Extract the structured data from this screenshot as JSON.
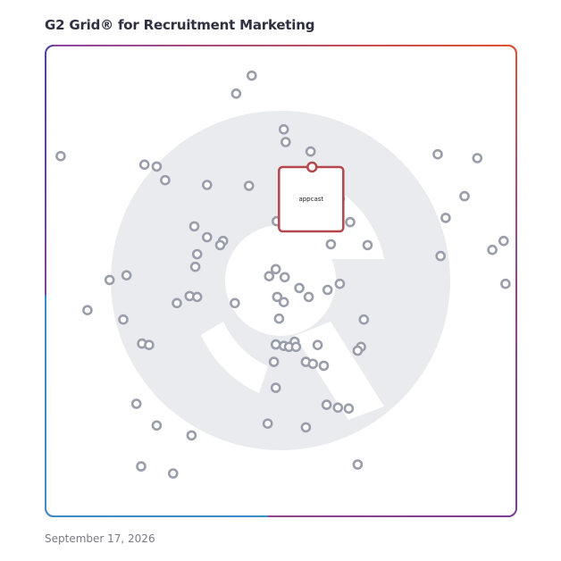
{
  "header": {
    "title": "G2 Grid® for Recruitment Marketing"
  },
  "footer": {
    "date": "September 17, 2026"
  },
  "highlight": {
    "label": "appcast",
    "color": "#b5474c"
  },
  "colors": {
    "point_stroke": "#9a9eab",
    "watermark": "#e9ebef",
    "frame_top_left": "#4a3fa6",
    "frame_top_right": "#e3502f",
    "frame_bottom_left": "#2a98d2",
    "frame_bottom_right": "#7a3d98"
  },
  "chart_data": {
    "type": "scatter",
    "title": "G2 Grid® for Recruitment Marketing",
    "xlabel": "",
    "ylabel": "",
    "xlim": [
      0,
      100
    ],
    "ylim": [
      0,
      100
    ],
    "grid": false,
    "quadrant_lines": {
      "x": 50,
      "y": 50
    },
    "highlight_point": {
      "label": "appcast",
      "x": 56.6,
      "y": 74.2
    },
    "points": [
      [
        43.8,
        93.6
      ],
      [
        40.5,
        89.8
      ],
      [
        50.6,
        82.2
      ],
      [
        51.0,
        79.5
      ],
      [
        56.3,
        77.5
      ],
      [
        3.2,
        76.5
      ],
      [
        21.0,
        74.7
      ],
      [
        23.6,
        74.3
      ],
      [
        25.4,
        71.4
      ],
      [
        34.3,
        70.4
      ],
      [
        43.2,
        70.2
      ],
      [
        62.5,
        67.4
      ],
      [
        83.3,
        76.9
      ],
      [
        91.7,
        76.1
      ],
      [
        89.0,
        68.0
      ],
      [
        85.0,
        63.4
      ],
      [
        49.1,
        62.7
      ],
      [
        64.7,
        62.5
      ],
      [
        31.6,
        61.6
      ],
      [
        34.3,
        59.3
      ],
      [
        37.7,
        58.5
      ],
      [
        37.1,
        57.6
      ],
      [
        32.2,
        55.7
      ],
      [
        60.6,
        57.8
      ],
      [
        68.4,
        57.6
      ],
      [
        94.9,
        56.6
      ],
      [
        97.3,
        58.5
      ],
      [
        83.9,
        55.3
      ],
      [
        31.8,
        53.0
      ],
      [
        48.9,
        52.5
      ],
      [
        47.5,
        51.0
      ],
      [
        50.8,
        50.8
      ],
      [
        17.2,
        51.2
      ],
      [
        13.6,
        50.2
      ],
      [
        97.7,
        49.4
      ],
      [
        62.5,
        49.4
      ],
      [
        53.9,
        48.5
      ],
      [
        59.9,
        48.1
      ],
      [
        55.9,
        46.6
      ],
      [
        49.2,
        46.6
      ],
      [
        30.6,
        46.8
      ],
      [
        32.2,
        46.6
      ],
      [
        50.6,
        45.5
      ],
      [
        27.9,
        45.3
      ],
      [
        40.2,
        45.3
      ],
      [
        8.9,
        43.8
      ],
      [
        16.5,
        41.8
      ],
      [
        49.6,
        42.0
      ],
      [
        67.6,
        41.8
      ],
      [
        52.9,
        37.1
      ],
      [
        20.5,
        36.7
      ],
      [
        22.0,
        36.4
      ],
      [
        48.9,
        36.5
      ],
      [
        50.6,
        36.2
      ],
      [
        57.8,
        36.4
      ],
      [
        51.7,
        36.0
      ],
      [
        48.5,
        32.8
      ],
      [
        53.2,
        36.0
      ],
      [
        67.0,
        36.0
      ],
      [
        66.3,
        35.2
      ],
      [
        55.3,
        32.8
      ],
      [
        56.8,
        32.4
      ],
      [
        59.1,
        32.0
      ],
      [
        48.9,
        27.3
      ],
      [
        19.3,
        23.9
      ],
      [
        59.7,
        23.7
      ],
      [
        62.1,
        23.1
      ],
      [
        64.4,
        22.9
      ],
      [
        23.6,
        19.3
      ],
      [
        47.2,
        19.7
      ],
      [
        55.3,
        18.9
      ],
      [
        31.0,
        17.2
      ],
      [
        20.3,
        10.6
      ],
      [
        66.3,
        11.0
      ],
      [
        27.1,
        9.1
      ]
    ]
  }
}
